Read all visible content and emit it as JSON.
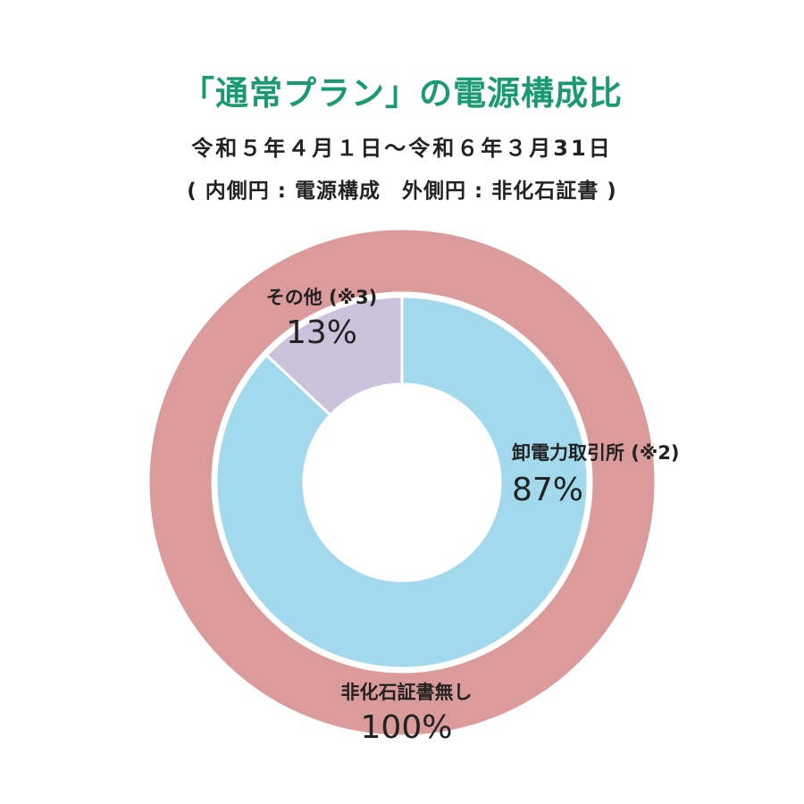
{
  "title": "「通常プラン」の電源構成比",
  "subtitle": "令和５年４月１日～令和６年３月31日",
  "note": "( 内側円 : 電源構成　外側円 : 非化石証書 )",
  "colors": {
    "outer_ring": "#db9b9b",
    "jepx": "#a2d9ed",
    "other": "#cbc2dc",
    "separator": "#ffffff"
  },
  "chart_data": [
    {
      "type": "pie",
      "ring": "inner",
      "title": "",
      "slices": [
        {
          "label": "その他 (※3)",
          "value": 13,
          "value_label": "13%",
          "color": "#cbc2dc"
        },
        {
          "label": "卸電力取引所 (※2)",
          "value": 87,
          "value_label": "87%",
          "color": "#a2d9ed"
        }
      ]
    },
    {
      "type": "pie",
      "ring": "outer",
      "title": "",
      "slices": [
        {
          "label": "非化石証書無し",
          "value": 100,
          "value_label": "100%",
          "color": "#db9b9b"
        }
      ]
    }
  ]
}
